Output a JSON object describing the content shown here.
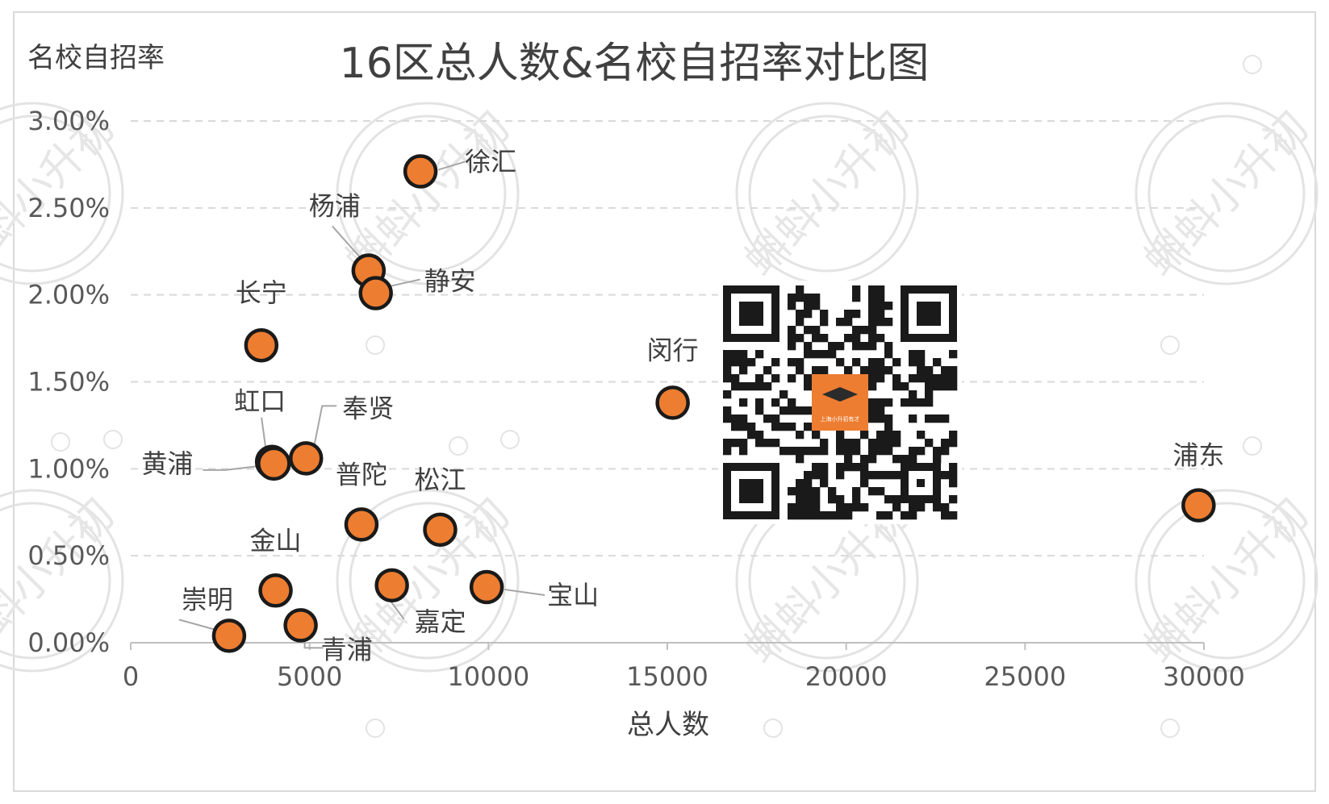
{
  "chart_data": {
    "type": "scatter",
    "title": "16区总人数&名校自招率对比图",
    "xlabel": "总人数",
    "ylabel": "名校自招率",
    "xlim": [
      0,
      30000
    ],
    "ylim": [
      0,
      0.03
    ],
    "xticks": [
      "0",
      "5000",
      "10000",
      "15000",
      "20000",
      "25000",
      "30000"
    ],
    "yticks": [
      "0.00%",
      "0.50%",
      "1.00%",
      "1.50%",
      "2.00%",
      "2.50%",
      "3.00%"
    ],
    "grid": "horizontal dashed",
    "marker_color": "#ED7D31",
    "marker_edge": "#1a1a1a",
    "points": [
      {
        "label": "徐汇",
        "x": 8100,
        "y": 0.0271
      },
      {
        "label": "杨浦",
        "x": 6650,
        "y": 0.0214
      },
      {
        "label": "静安",
        "x": 6850,
        "y": 0.0201
      },
      {
        "label": "长宁",
        "x": 3650,
        "y": 0.0171
      },
      {
        "label": "闵行",
        "x": 15150,
        "y": 0.0138
      },
      {
        "label": "虹口",
        "x": 3950,
        "y": 0.0104
      },
      {
        "label": "奉贤",
        "x": 4900,
        "y": 0.0106
      },
      {
        "label": "黄浦",
        "x": 4000,
        "y": 0.0103
      },
      {
        "label": "普陀",
        "x": 6450,
        "y": 0.0068
      },
      {
        "label": "松江",
        "x": 8650,
        "y": 0.0065
      },
      {
        "label": "浦东",
        "x": 29850,
        "y": 0.0079
      },
      {
        "label": "金山",
        "x": 4050,
        "y": 0.003
      },
      {
        "label": "嘉定",
        "x": 7300,
        "y": 0.0033
      },
      {
        "label": "宝山",
        "x": 9950,
        "y": 0.0032
      },
      {
        "label": "崇明",
        "x": 2750,
        "y": 0.0004
      },
      {
        "label": "青浦",
        "x": 4750,
        "y": 0.001
      }
    ]
  },
  "watermark": {
    "text": "蝌蚪小升初"
  },
  "qr_logo": {
    "text": "上海小升初有才",
    "color": "#ED7D31"
  }
}
